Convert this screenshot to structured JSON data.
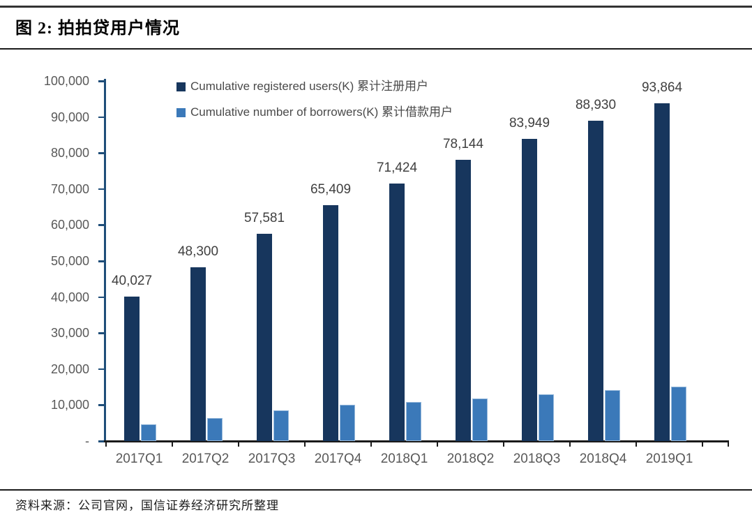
{
  "figure": {
    "title": "图 2: 拍拍贷用户情况",
    "source": "资料来源：公司官网，国信证券经济研究所整理"
  },
  "chart_data": {
    "type": "bar",
    "title": "拍拍贷用户情况",
    "categories": [
      "2017Q1",
      "2017Q2",
      "2017Q3",
      "2017Q4",
      "2018Q1",
      "2018Q2",
      "2018Q3",
      "2018Q4",
      "2019Q1"
    ],
    "series": [
      {
        "name": "Cumulative registered users(K) 累计注册用户",
        "color": "#17365D",
        "values": [
          40027,
          48300,
          57581,
          65409,
          71424,
          78144,
          83949,
          88930,
          93864
        ],
        "labels": [
          "40,027",
          "48,300",
          "57,581",
          "65,409",
          "71,424",
          "78,144",
          "83,949",
          "88,930",
          "93,864"
        ]
      },
      {
        "name": "Cumulative number of borrowers(K) 累计借款用户",
        "color": "#3B79B9",
        "values": [
          4600,
          6400,
          8500,
          10100,
          10900,
          11800,
          13000,
          14100,
          15100
        ],
        "labels": null
      }
    ],
    "ylim": [
      0,
      100000
    ],
    "ytick_step": 10000,
    "ytick_labels": [
      "-",
      "10,000",
      "20,000",
      "30,000",
      "40,000",
      "50,000",
      "60,000",
      "70,000",
      "80,000",
      "90,000",
      "100,000"
    ],
    "legend_position": "top-inside",
    "grid": false,
    "axis_colors": {
      "y_axis": "#1F4E79",
      "x_axis": "#1a1a1a"
    },
    "text_colors": {
      "tick_label": "#595959",
      "data_label": "#404040",
      "legend_label": "#4a4a4a"
    }
  }
}
